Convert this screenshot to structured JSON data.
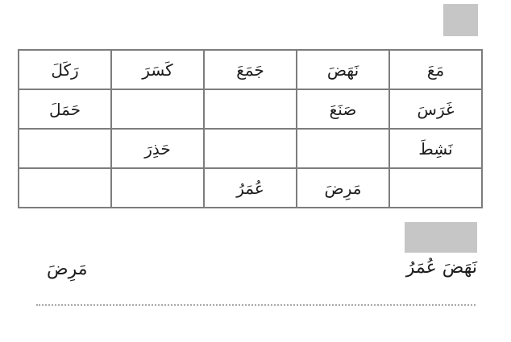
{
  "colors": {
    "placeholder_gray": "#c6c6c6",
    "table_border": "#7d7d7d",
    "text": "#1c1c1c",
    "dotted_line": "#a8a8a8"
  },
  "table": {
    "direction": "rtl",
    "rows": [
      [
        "مَعَ",
        "نَهَضَ",
        "جَمَعَ",
        "كَسَرَ",
        "رَكَلَ"
      ],
      [
        "غَرَسَ",
        "صَنَعَ",
        "",
        "",
        "حَمَلَ"
      ],
      [
        "نَشِطَ",
        "",
        "",
        "حَذِرَ",
        ""
      ],
      [
        "",
        "مَرِضَ",
        "عُمَرُ",
        "",
        ""
      ]
    ]
  },
  "answers": {
    "right_text": "نَهَضَ عُمَرُ",
    "left_text": "مَرِضَ"
  }
}
